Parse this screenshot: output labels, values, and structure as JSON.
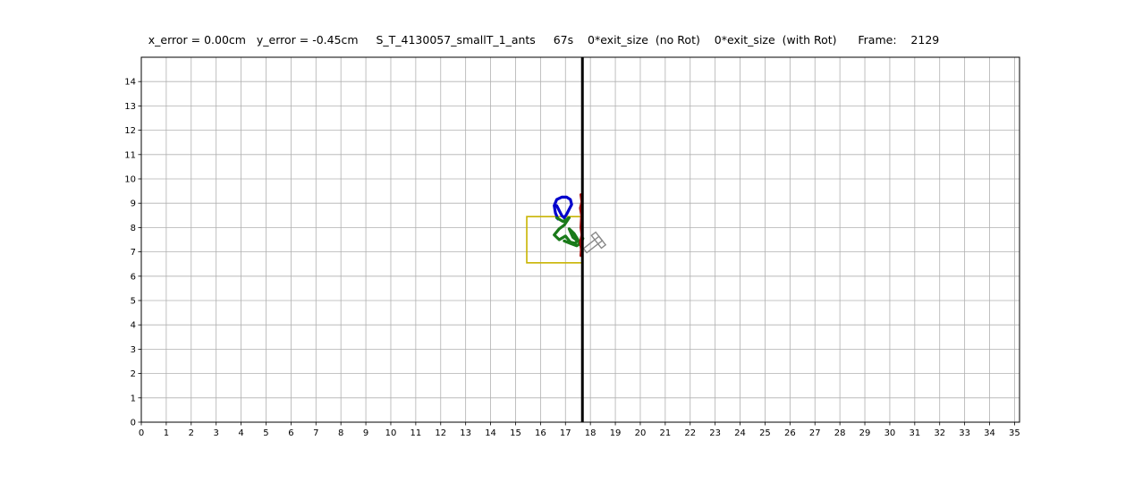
{
  "chart_data": {
    "type": "line",
    "title": "x_error = 0.00cm   y_error = -0.45cm     S_T_4130057_smallT_1_ants     67s    0*exit_size  (no Rot)    0*exit_size  (with Rot)      Frame:    2129",
    "xlabel": "",
    "ylabel": "",
    "xlim": [
      0,
      35.2
    ],
    "ylim": [
      0,
      15
    ],
    "xticks": [
      0,
      1,
      2,
      3,
      4,
      5,
      6,
      7,
      8,
      9,
      10,
      11,
      12,
      13,
      14,
      15,
      16,
      17,
      18,
      19,
      20,
      21,
      22,
      23,
      24,
      25,
      26,
      27,
      28,
      29,
      30,
      31,
      32,
      33,
      34,
      35
    ],
    "yticks": [
      0,
      1,
      2,
      3,
      4,
      5,
      6,
      7,
      8,
      9,
      10,
      11,
      12,
      13,
      14
    ],
    "grid": true,
    "wall_x": 17.68,
    "exit_rect": {
      "x": [
        15.45,
        17.68
      ],
      "y": [
        6.55,
        8.45
      ]
    },
    "series": [
      {
        "color": "#0000cc",
        "x": [
          16.7,
          16.6,
          16.55,
          16.65,
          16.85,
          17.05,
          17.2,
          17.25,
          17.15,
          17.05,
          16.95,
          16.85,
          16.75,
          16.65
        ],
        "y": [
          8.35,
          8.6,
          8.9,
          9.15,
          9.25,
          9.25,
          9.15,
          8.95,
          8.75,
          8.55,
          8.4,
          8.5,
          8.7,
          8.9
        ]
      },
      {
        "color": "#1a7a1a",
        "x": [
          16.65,
          16.9,
          17.15,
          16.95,
          16.75,
          16.55,
          16.75,
          17.0,
          17.2,
          17.4,
          17.5,
          17.35,
          17.15,
          17.3,
          17.55,
          17.7,
          17.6,
          17.45,
          17.2,
          16.95
        ],
        "y": [
          8.4,
          8.25,
          8.4,
          8.1,
          7.95,
          7.7,
          7.5,
          7.65,
          7.4,
          7.35,
          7.5,
          7.75,
          7.95,
          7.6,
          7.4,
          7.55,
          7.35,
          7.25,
          7.35,
          7.45
        ]
      },
      {
        "color": "#aa1111",
        "x": [
          17.62,
          17.66,
          17.6,
          17.65,
          17.62,
          17.66,
          17.6,
          17.64,
          17.62
        ],
        "y": [
          9.35,
          9.05,
          8.8,
          8.5,
          8.0,
          7.7,
          7.4,
          7.1,
          6.85
        ]
      }
    ],
    "shape_color": "#888888",
    "shape_center": [
      18.1,
      7.3
    ]
  }
}
